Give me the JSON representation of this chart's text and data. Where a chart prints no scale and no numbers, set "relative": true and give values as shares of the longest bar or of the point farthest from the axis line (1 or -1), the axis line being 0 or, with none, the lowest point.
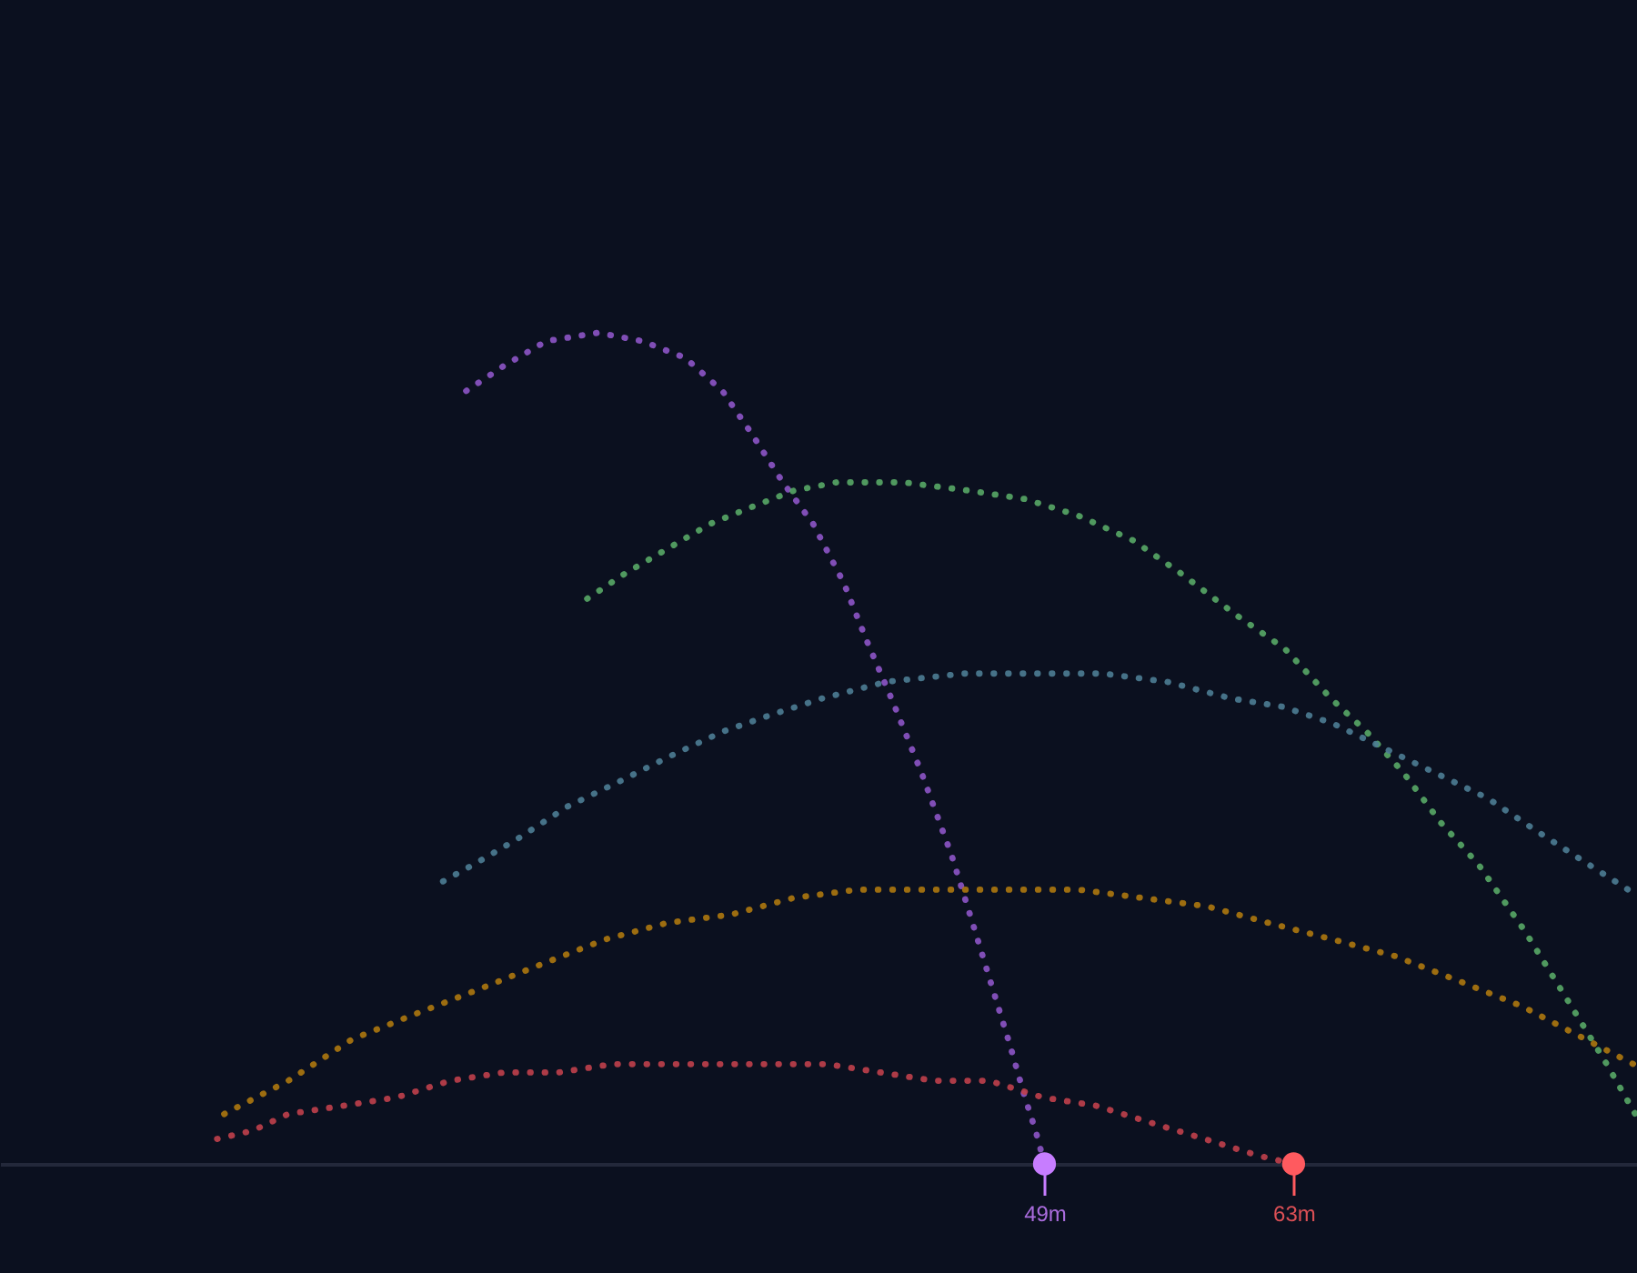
{
  "chart_data": {
    "type": "line",
    "relative": true,
    "xlim": [
      -9.7,
      82.3
    ],
    "xticks": [
      {
        "value": 49,
        "label": "49m"
      },
      {
        "value": 63,
        "label": "63m"
      }
    ],
    "tick_labels": "x",
    "line_style": "dotted",
    "series": [
      {
        "color": "#8d55c6",
        "x": [
          16.5,
          18.6,
          21.0,
          23.9,
          26.4,
          28.8,
          30.9,
          32.5,
          34.3,
          36.0,
          37.7,
          39.0,
          40.4,
          42.1,
          43.8,
          45.1,
          47.1,
          47.9,
          48.5,
          49
        ],
        "values": [
          0.93,
          0.96,
          0.99,
          1,
          0.99,
          0.97,
          0.93,
          0.88,
          0.82,
          0.77,
          0.7,
          0.63,
          0.56,
          0.47,
          0.37,
          0.28,
          0.14,
          0.08,
          0.04,
          0
        ]
      },
      {
        "color": "#58a866",
        "x": [
          23.3,
          25.4,
          27.8,
          30.2,
          32.5,
          34.9,
          37.3,
          41.1,
          44.8,
          47.9,
          50.9,
          54.0,
          56.7,
          59.8,
          62.5,
          65.1,
          67.1,
          69.2,
          71.3,
          73.4,
          76.0,
          78.6,
          80.6,
          82.2
        ],
        "values": [
          0.68,
          0.71,
          0.74,
          0.77,
          0.79,
          0.81,
          0.82,
          0.82,
          0.81,
          0.8,
          0.78,
          0.75,
          0.71,
          0.66,
          0.62,
          0.56,
          0.52,
          0.47,
          0.41,
          0.36,
          0.28,
          0.19,
          0.12,
          0.06
        ]
      },
      {
        "color": "#4d7d94",
        "x": [
          15.2,
          16.9,
          19.3,
          22.2,
          25.1,
          27.9,
          30.9,
          33.6,
          36.5,
          40.1,
          44.5,
          48.7,
          52.3,
          55.9,
          59.5,
          62.4,
          65.2,
          68.1,
          71.0,
          73.9,
          76.7,
          79.6,
          81.8
        ],
        "values": [
          0.34,
          0.36,
          0.39,
          0.43,
          0.46,
          0.49,
          0.52,
          0.54,
          0.56,
          0.58,
          0.59,
          0.59,
          0.59,
          0.58,
          0.56,
          0.55,
          0.53,
          0.5,
          0.47,
          0.44,
          0.4,
          0.36,
          0.33
        ]
      },
      {
        "color": "#ad780e",
        "x": [
          2.9,
          6.5,
          10.1,
          13.6,
          17.2,
          20.7,
          24.3,
          27.8,
          31.4,
          34.9,
          38.5,
          43.9,
          47.4,
          50.9,
          54.5,
          58.1,
          61.6,
          65.2,
          68.7,
          72.3,
          75.8,
          78.5,
          81.2,
          82.1
        ],
        "values": [
          0.06,
          0.1,
          0.15,
          0.18,
          0.21,
          0.24,
          0.27,
          0.29,
          0.3,
          0.32,
          0.33,
          0.33,
          0.33,
          0.33,
          0.32,
          0.31,
          0.29,
          0.27,
          0.25,
          0.22,
          0.19,
          0.16,
          0.13,
          0.12
        ]
      },
      {
        "color": "#c0404b",
        "x": [
          2.5,
          4.5,
          6.5,
          9.6,
          12.6,
          15.6,
          18.6,
          21.7,
          24.7,
          27.7,
          30.7,
          33.8,
          36.8,
          39.8,
          42.8,
          45.9,
          48.9,
          51.9,
          54.9,
          58.0,
          61.0,
          63
        ],
        "values": [
          0.03,
          0.04,
          0.06,
          0.07,
          0.08,
          0.1,
          0.11,
          0.11,
          0.12,
          0.12,
          0.12,
          0.12,
          0.12,
          0.11,
          0.1,
          0.1,
          0.08,
          0.07,
          0.05,
          0.03,
          0.01,
          0
        ]
      },
      {
        "type": "scatter",
        "color": "#c77dff",
        "marker": "circle",
        "x": [
          49
        ],
        "values": [
          0
        ]
      },
      {
        "type": "scatter",
        "color": "#ff5a5f",
        "marker": "circle",
        "x": [
          63
        ],
        "values": [
          0
        ]
      }
    ]
  }
}
